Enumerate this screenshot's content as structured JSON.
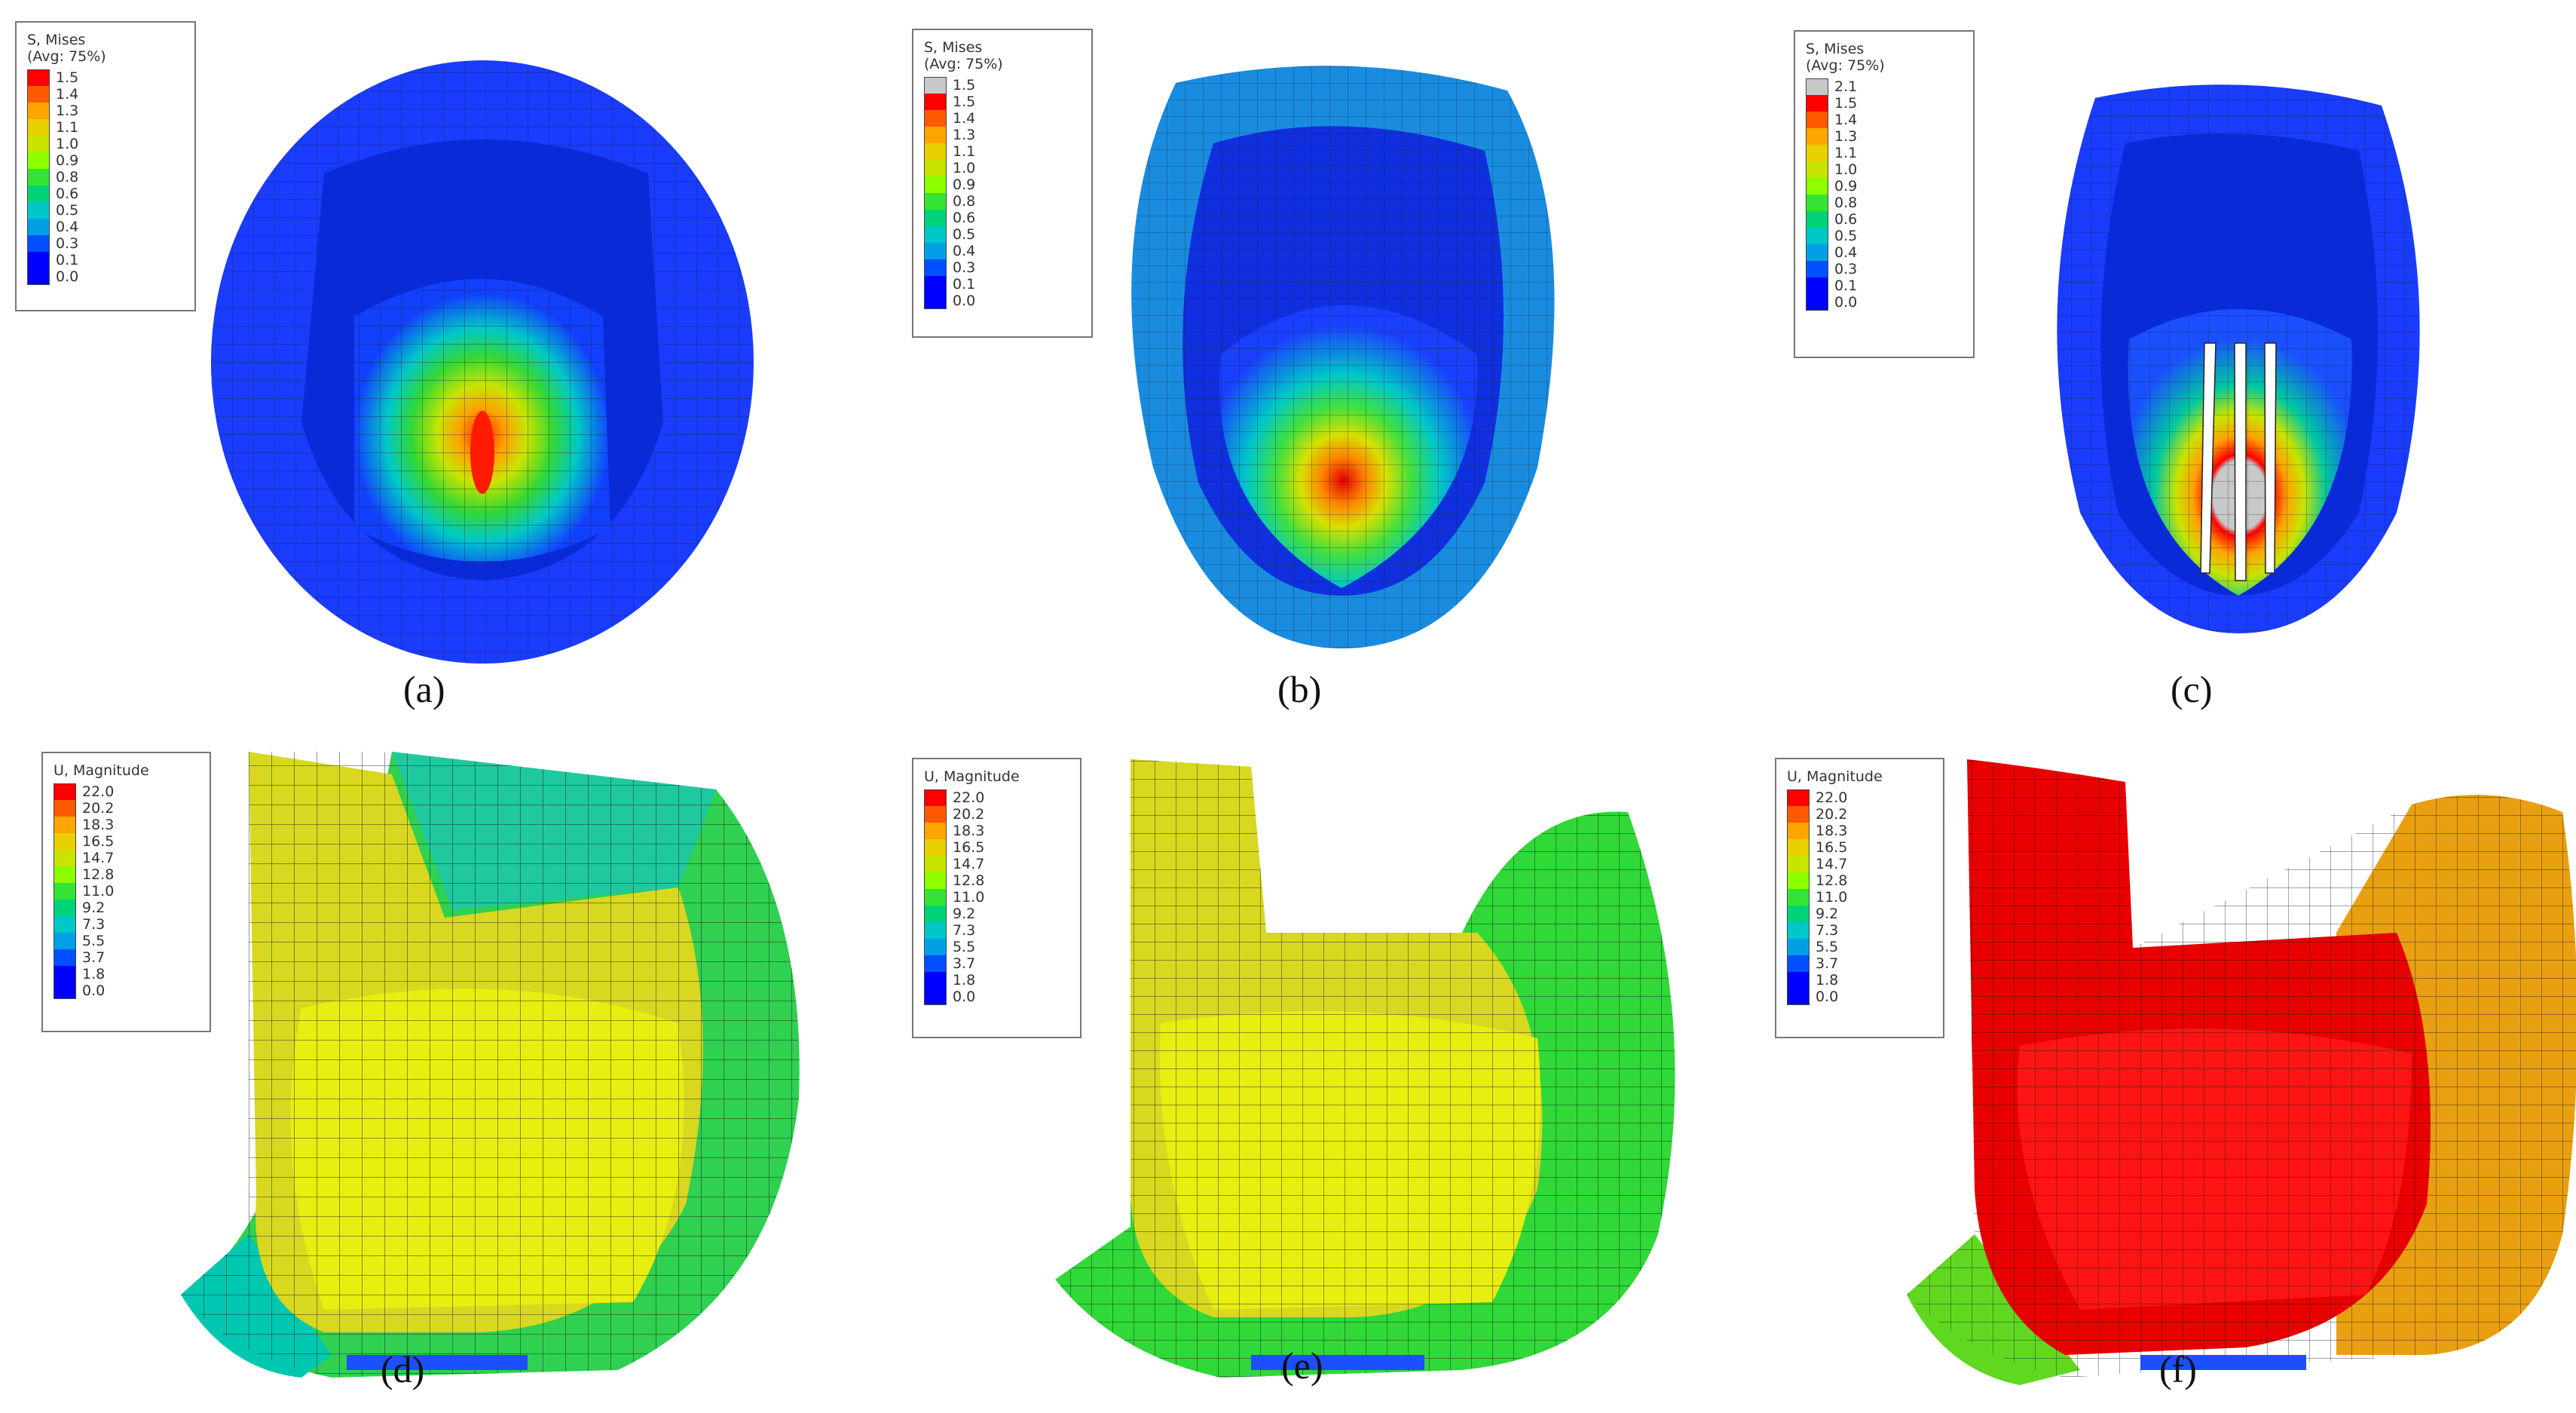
{
  "stress_legend_title": [
    "S, Mises",
    "(Avg: 75%)"
  ],
  "disp_legend_title": [
    "U, Magnitude"
  ],
  "panels": [
    {
      "caption": "(a)",
      "legend": [
        "1.5",
        "1.4",
        "1.3",
        "1.1",
        "1.0",
        "0.9",
        "0.8",
        "0.6",
        "0.5",
        "0.4",
        "0.3",
        "0.1",
        "0.0"
      ]
    },
    {
      "caption": "(b)",
      "legend": [
        "1.5",
        "1.5",
        "1.4",
        "1.3",
        "1.1",
        "1.0",
        "0.9",
        "0.8",
        "0.6",
        "0.5",
        "0.4",
        "0.3",
        "0.1",
        "0.0"
      ]
    },
    {
      "caption": "(c)",
      "legend": [
        "2.1",
        "1.5",
        "1.4",
        "1.3",
        "1.1",
        "1.0",
        "0.9",
        "0.8",
        "0.6",
        "0.5",
        "0.4",
        "0.3",
        "0.1",
        "0.0"
      ]
    },
    {
      "caption": "(d)",
      "legend": [
        "22.0",
        "20.2",
        "18.3",
        "16.5",
        "14.7",
        "12.8",
        "11.0",
        "9.2",
        "7.3",
        "5.5",
        "3.7",
        "1.8",
        "0.0"
      ]
    },
    {
      "caption": "(e)",
      "legend": [
        "22.0",
        "20.2",
        "18.3",
        "16.5",
        "14.7",
        "12.8",
        "11.0",
        "9.2",
        "7.3",
        "5.5",
        "3.7",
        "1.8",
        "0.0"
      ]
    },
    {
      "caption": "(f)",
      "legend": [
        "22.0",
        "20.2",
        "18.3",
        "16.5",
        "14.7",
        "12.8",
        "11.0",
        "9.2",
        "7.3",
        "5.5",
        "3.7",
        "1.8",
        "0.0"
      ]
    }
  ],
  "colors": {
    "contour_scale": [
      "#ff0000",
      "#ff5a00",
      "#ffa500",
      "#e8d000",
      "#c8e400",
      "#8cff00",
      "#34e434",
      "#00d278",
      "#00c8c8",
      "#00a0e6",
      "#0050ff",
      "#0000ff"
    ],
    "overflow_grey": "#c8c8c8",
    "mesh_line": "#1a1a1a"
  }
}
